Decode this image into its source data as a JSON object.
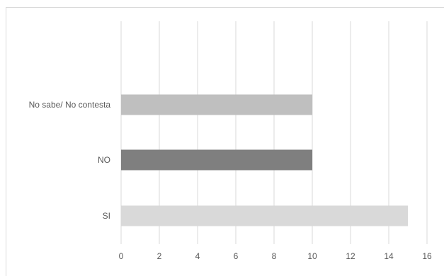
{
  "chart_data": {
    "type": "bar",
    "orientation": "horizontal",
    "categories": [
      "No sabe/ No contesta",
      "NO",
      "SI"
    ],
    "values": [
      10,
      10,
      15
    ],
    "bar_colors": [
      "#bfbfbf",
      "#7f7f7f",
      "#d9d9d9"
    ],
    "xlim": [
      0,
      16
    ],
    "x_ticks": [
      "0",
      "2",
      "4",
      "6",
      "8",
      "10",
      "12",
      "14",
      "16"
    ],
    "grid": true,
    "legend": "none",
    "title": "",
    "xlabel": "",
    "ylabel": ""
  }
}
